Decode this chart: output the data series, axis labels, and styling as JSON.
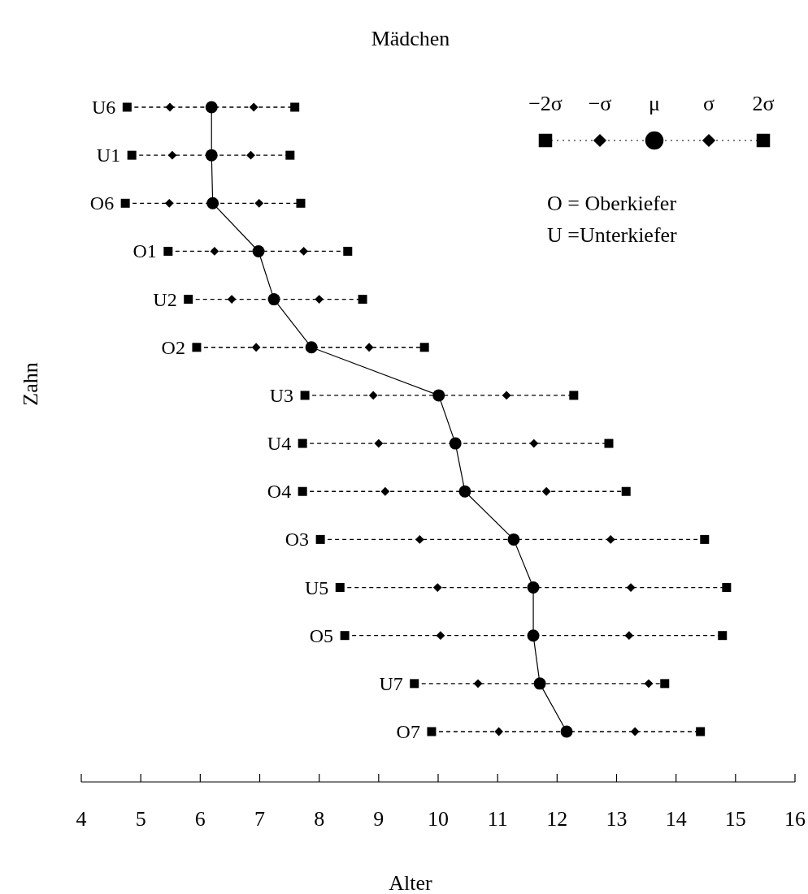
{
  "chart_data": {
    "type": "scatter",
    "orientation": "horizontal",
    "title": "Mädchen",
    "xlabel": "Alter",
    "ylabel": "Zahn",
    "categories": [
      "U6",
      "U1",
      "O6",
      "O1",
      "U2",
      "O2",
      "U3",
      "U4",
      "O4",
      "O3",
      "U5",
      "O5",
      "U7",
      "O7"
    ],
    "xlim": [
      4,
      16
    ],
    "xticks": [
      4,
      5,
      6,
      7,
      8,
      9,
      10,
      11,
      12,
      13,
      14,
      15,
      16
    ],
    "legend": "top right",
    "grid": false,
    "series": [
      {
        "name": "−2σ",
        "type": "scatter",
        "marker": "square",
        "color": "#000000",
        "values": [
          4.77,
          4.85,
          4.74,
          5.46,
          5.8,
          5.94,
          7.76,
          7.72,
          7.72,
          8.02,
          8.35,
          8.43,
          9.6,
          9.89
        ]
      },
      {
        "name": "−σ",
        "type": "scatter",
        "marker": "diamond",
        "color": "#000000",
        "values": [
          5.49,
          5.53,
          5.48,
          6.24,
          6.53,
          6.94,
          8.91,
          9.0,
          9.11,
          9.69,
          9.99,
          10.04,
          10.67,
          11.02
        ]
      },
      {
        "name": "μ",
        "type": "line",
        "marker": "circle",
        "line_style": "solid",
        "color": "#000000",
        "values": [
          6.19,
          6.19,
          6.21,
          6.98,
          7.24,
          7.87,
          10.01,
          10.29,
          10.45,
          11.27,
          11.6,
          11.6,
          11.71,
          12.16
        ]
      },
      {
        "name": "σ",
        "type": "scatter",
        "marker": "diamond",
        "color": "#000000",
        "values": [
          6.9,
          6.85,
          6.99,
          7.74,
          8.0,
          8.84,
          11.15,
          11.61,
          11.82,
          12.9,
          13.24,
          13.21,
          13.54,
          13.31
        ]
      },
      {
        "name": "2σ",
        "type": "scatter",
        "marker": "square",
        "color": "#000000",
        "values": [
          7.59,
          7.51,
          7.69,
          8.48,
          8.73,
          9.77,
          12.28,
          12.87,
          13.16,
          14.48,
          14.85,
          14.78,
          13.81,
          14.41
        ]
      }
    ],
    "annotations": [
      "O = Oberkiefer",
      "U =Unterkiefer"
    ]
  }
}
